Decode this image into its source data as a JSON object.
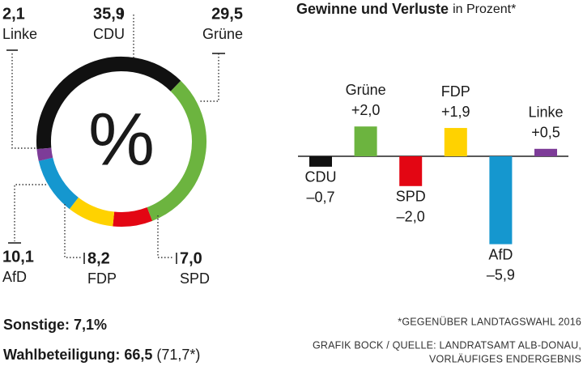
{
  "chart_data": [
    {
      "type": "donut",
      "center_label": "%",
      "categories": [
        "CDU",
        "Grüne",
        "SPD",
        "FDP",
        "AfD",
        "Linke"
      ],
      "values": [
        35.9,
        29.5,
        7.0,
        8.2,
        10.1,
        2.1
      ],
      "value_labels": [
        "35,9",
        "29,5",
        "7,0",
        "8,2",
        "10,1",
        "2,1"
      ],
      "colors": [
        "#111111",
        "#6cb43f",
        "#e30613",
        "#ffd200",
        "#1597cf",
        "#7d3c98"
      ]
    },
    {
      "type": "bar",
      "title": "Gewinne und Verluste",
      "subtitle": "in Prozent*",
      "categories": [
        "CDU",
        "Grüne",
        "SPD",
        "FDP",
        "AfD",
        "Linke"
      ],
      "values": [
        -0.7,
        2.0,
        -2.0,
        1.9,
        -5.9,
        0.5
      ],
      "value_labels": [
        "–0,7",
        "+2,0",
        "–2,0",
        "+1,9",
        "–5,9",
        "+0,5"
      ],
      "colors": [
        "#111111",
        "#6cb43f",
        "#e30613",
        "#ffd200",
        "#1597cf",
        "#7d3c98"
      ]
    }
  ],
  "footer": {
    "others": "Sonstige: 7,1%",
    "turnout": "Wahlbeteiligung: 66,5",
    "turnout_previous": "(71,7*)",
    "footnote": "*GEGENÜBER LANDTAGSWAHL 2016",
    "source": [
      "GRAFIK BOCK / QUELLE: LANDRATSAMT ALB-DONAU,",
      "VORLÄUFIGES ENDERGEBNIS"
    ]
  }
}
